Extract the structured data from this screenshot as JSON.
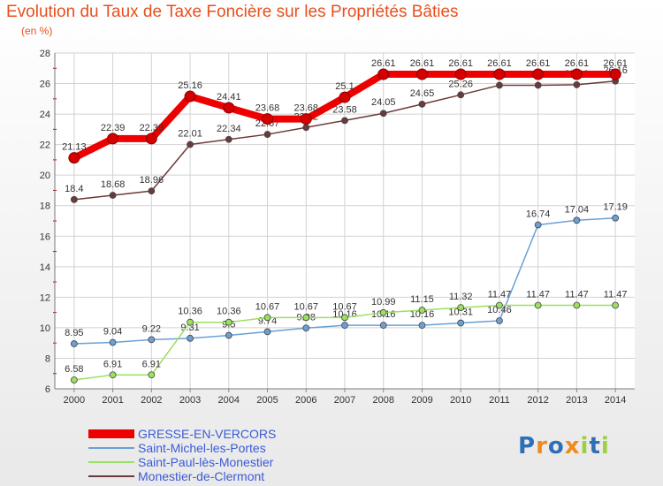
{
  "chart_data": {
    "type": "line",
    "title": "Evolution du Taux de Taxe Foncière sur les Propriétés Bâties",
    "subtitle": "(en %)",
    "xlabel": "",
    "ylabel": "(en %)",
    "ylim": [
      6,
      28
    ],
    "yticks": [
      6,
      8,
      10,
      12,
      14,
      16,
      18,
      20,
      22,
      24,
      26,
      28
    ],
    "grid": true,
    "x": [
      "2000",
      "2001",
      "2002",
      "2003",
      "2004",
      "2005",
      "2006",
      "2007",
      "2008",
      "2009",
      "2010",
      "2011",
      "2012",
      "2013",
      "2014"
    ],
    "series": [
      {
        "name": "GRESSE-EN-VERCORS",
        "color": "#ee0000",
        "values": [
          21.13,
          22.39,
          22.39,
          25.16,
          24.41,
          23.68,
          23.68,
          25.1,
          26.61,
          26.61,
          26.61,
          26.61,
          26.61,
          26.61,
          26.61
        ],
        "labels": [
          "21.13",
          "22.39",
          "22.39",
          "25.16",
          "24.41",
          "23.68",
          "23.68",
          "25.1",
          "26.61",
          "26.61",
          "26.61",
          "26.61",
          "26.61",
          "26.61",
          "26.61"
        ]
      },
      {
        "name": "Saint-Michel-les-Portes",
        "color": "#6aa0d4",
        "values": [
          8.95,
          9.04,
          9.22,
          9.31,
          9.5,
          9.74,
          9.98,
          10.16,
          10.16,
          10.16,
          10.31,
          10.46,
          16.74,
          17.04,
          17.19
        ],
        "labels": [
          "8.95",
          "9.04",
          "9.22",
          "9.31",
          "9.5",
          "9.74",
          "9.98",
          "10.16",
          "10.16",
          "10.16",
          "10.31",
          "10.46",
          "16.74",
          "17.04",
          "17.19"
        ]
      },
      {
        "name": "Saint-Paul-lès-Monestier",
        "color": "#9be060",
        "values": [
          6.58,
          6.91,
          6.91,
          10.36,
          10.36,
          10.67,
          10.67,
          10.67,
          10.99,
          11.15,
          11.32,
          11.47,
          11.47,
          11.47,
          11.47
        ],
        "labels": [
          "6.58",
          "6.91",
          "6.91",
          "10.36",
          "10.36",
          "10.67",
          "10.67",
          "10.67",
          "10.99",
          "11.15",
          "11.32",
          "11.47",
          "11.47",
          "11.47",
          "11.47"
        ]
      },
      {
        "name": "Monestier-de-Clermont",
        "color": "#6b3a3a",
        "values": [
          18.4,
          18.68,
          18.96,
          22.01,
          22.34,
          22.67,
          23.12,
          23.58,
          24.05,
          24.65,
          25.26,
          25.89,
          25.89,
          25.92,
          26.16
        ],
        "labels": [
          "18.4",
          "18.68",
          "18.96",
          "22.01",
          "22.34",
          "22.67",
          "23.12",
          "23.58",
          "24.05",
          "24.65",
          "25.26",
          "25.89",
          "25.89",
          "25.92",
          "26.16"
        ]
      }
    ],
    "legend_position": "bottom-left"
  },
  "logo": {
    "text": "Proxiti",
    "letters": [
      {
        "ch": "P",
        "color": "#2f6fb6"
      },
      {
        "ch": "r",
        "color": "#f08a1c"
      },
      {
        "ch": "o",
        "color": "#2f6fb6"
      },
      {
        "ch": "x",
        "color": "#f08a1c"
      },
      {
        "ch": "i",
        "color": "#9bd040"
      },
      {
        "ch": "t",
        "color": "#2f6fb6"
      },
      {
        "ch": "i",
        "color": "#9bd040"
      }
    ]
  }
}
